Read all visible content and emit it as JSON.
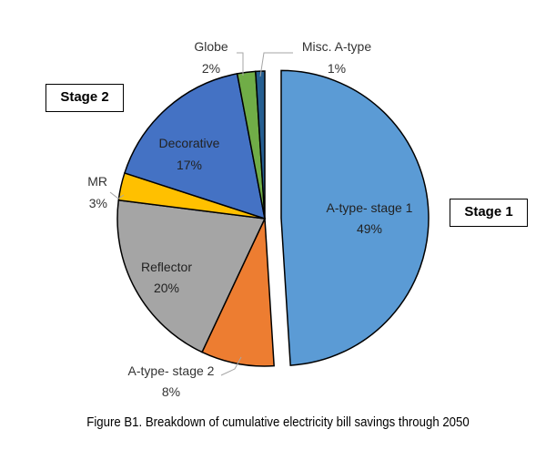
{
  "chart_data": {
    "type": "pie",
    "title": "",
    "caption": "Figure B1. Breakdown of cumulative electricity bill savings through 2050",
    "slices": [
      {
        "name": "A-type- stage 1",
        "value": 49,
        "label": "49%",
        "color": "#5b9bd5",
        "exploded": true
      },
      {
        "name": "A-type- stage 2",
        "value": 8,
        "label": "8%",
        "color": "#ed7d31"
      },
      {
        "name": "Reflector",
        "value": 20,
        "label": "20%",
        "color": "#a5a5a5"
      },
      {
        "name": "MR",
        "value": 3,
        "label": "3%",
        "color": "#ffc000"
      },
      {
        "name": "Decorative",
        "value": 17,
        "label": "17%",
        "color": "#4472c4"
      },
      {
        "name": "Globe",
        "value": 2,
        "label": "2%",
        "color": "#70ad47"
      },
      {
        "name": "Misc. A-type",
        "value": 1,
        "label": "1%",
        "color": "#255e91"
      }
    ]
  },
  "annotations": {
    "stage1": "Stage 1",
    "stage2": "Stage 2"
  }
}
